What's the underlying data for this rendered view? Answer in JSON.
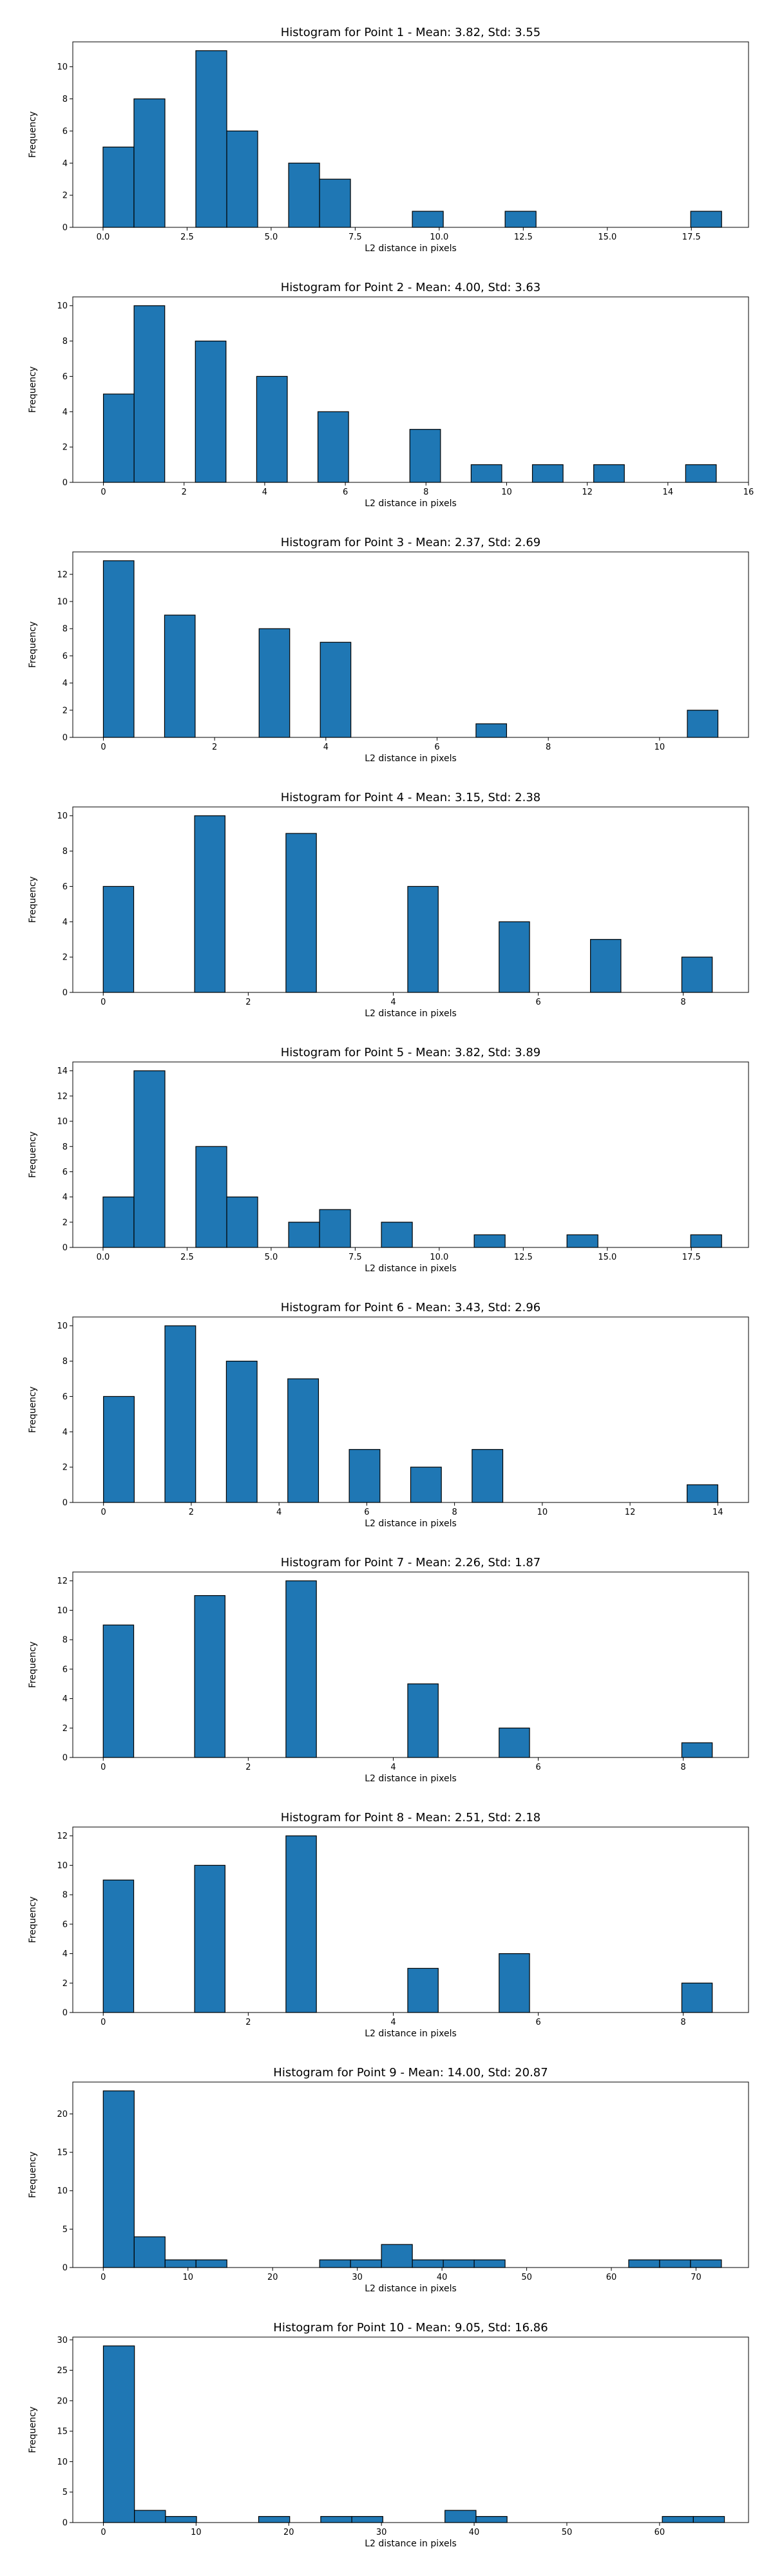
{
  "chart_data": [
    {
      "type": "bar",
      "title": "Histogram for Point 1 - Mean: 3.82, Std: 3.55",
      "xlabel": "L2 distance in pixels",
      "ylabel": "Frequency",
      "xlim": [
        -0.9,
        19.2
      ],
      "ylim": [
        0,
        11.55
      ],
      "xticks": [
        0.0,
        2.5,
        5.0,
        7.5,
        10.0,
        12.5,
        15.0,
        17.5
      ],
      "xtick_labels": [
        "0.0",
        "2.5",
        "5.0",
        "7.5",
        "10.0",
        "12.5",
        "15.0",
        "17.5"
      ],
      "yticks": [
        0,
        2,
        4,
        6,
        8,
        10
      ],
      "bars": [
        {
          "x0": 0.0,
          "x1": 0.92,
          "value": 5
        },
        {
          "x0": 0.92,
          "x1": 1.84,
          "value": 8
        },
        {
          "x0": 2.76,
          "x1": 3.68,
          "value": 11
        },
        {
          "x0": 3.68,
          "x1": 4.6,
          "value": 6
        },
        {
          "x0": 5.52,
          "x1": 6.44,
          "value": 4
        },
        {
          "x0": 6.44,
          "x1": 7.36,
          "value": 3
        },
        {
          "x0": 9.2,
          "x1": 10.12,
          "value": 1
        },
        {
          "x0": 11.96,
          "x1": 12.88,
          "value": 1
        },
        {
          "x0": 17.48,
          "x1": 18.4,
          "value": 1
        }
      ]
    },
    {
      "type": "bar",
      "title": "Histogram for Point 2 - Mean: 4.00, Std: 3.63",
      "xlabel": "L2 distance in pixels",
      "ylabel": "Frequency",
      "xlim": [
        -0.76,
        16.0
      ],
      "ylim": [
        0,
        10.5
      ],
      "xticks": [
        0,
        2,
        4,
        6,
        8,
        10,
        12,
        14,
        16
      ],
      "xtick_labels": [
        "0",
        "2",
        "4",
        "6",
        "8",
        "10",
        "12",
        "14",
        "16"
      ],
      "yticks": [
        0,
        2,
        4,
        6,
        8,
        10
      ],
      "bars": [
        {
          "x0": 0.0,
          "x1": 0.76,
          "value": 5
        },
        {
          "x0": 0.76,
          "x1": 1.52,
          "value": 10
        },
        {
          "x0": 2.28,
          "x1": 3.04,
          "value": 8
        },
        {
          "x0": 3.8,
          "x1": 4.56,
          "value": 6
        },
        {
          "x0": 5.32,
          "x1": 6.08,
          "value": 4
        },
        {
          "x0": 7.6,
          "x1": 8.36,
          "value": 3
        },
        {
          "x0": 9.12,
          "x1": 9.88,
          "value": 1
        },
        {
          "x0": 10.64,
          "x1": 11.4,
          "value": 1
        },
        {
          "x0": 12.16,
          "x1": 12.92,
          "value": 1
        },
        {
          "x0": 14.44,
          "x1": 15.2,
          "value": 1
        }
      ]
    },
    {
      "type": "bar",
      "title": "Histogram for Point 3 - Mean: 2.37, Std: 2.69",
      "xlabel": "L2 distance in pixels",
      "ylabel": "Frequency",
      "xlim": [
        -0.55,
        11.6
      ],
      "ylim": [
        0,
        13.65
      ],
      "xticks": [
        0,
        2,
        4,
        6,
        8,
        10
      ],
      "xtick_labels": [
        "0",
        "2",
        "4",
        "6",
        "8",
        "10"
      ],
      "yticks": [
        0,
        2,
        4,
        6,
        8,
        10,
        12
      ],
      "bars": [
        {
          "x0": 0.0,
          "x1": 0.55,
          "value": 13
        },
        {
          "x0": 1.1,
          "x1": 1.65,
          "value": 9
        },
        {
          "x0": 2.8,
          "x1": 3.35,
          "value": 8
        },
        {
          "x0": 3.9,
          "x1": 4.45,
          "value": 7
        },
        {
          "x0": 6.7,
          "x1": 7.25,
          "value": 1
        },
        {
          "x0": 10.5,
          "x1": 11.05,
          "value": 2
        }
      ]
    },
    {
      "type": "bar",
      "title": "Histogram for Point 4 - Mean: 3.15, Std: 2.38",
      "xlabel": "L2 distance in pixels",
      "ylabel": "Frequency",
      "xlim": [
        -0.42,
        8.9
      ],
      "ylim": [
        0,
        10.5
      ],
      "xticks": [
        0,
        2,
        4,
        6,
        8
      ],
      "xtick_labels": [
        "0",
        "2",
        "4",
        "6",
        "8"
      ],
      "yticks": [
        0,
        2,
        4,
        6,
        8,
        10
      ],
      "bars": [
        {
          "x0": 0.0,
          "x1": 0.42,
          "value": 6
        },
        {
          "x0": 1.26,
          "x1": 1.68,
          "value": 10
        },
        {
          "x0": 2.52,
          "x1": 2.94,
          "value": 9
        },
        {
          "x0": 4.2,
          "x1": 4.62,
          "value": 6
        },
        {
          "x0": 5.46,
          "x1": 5.88,
          "value": 4
        },
        {
          "x0": 6.72,
          "x1": 7.14,
          "value": 3
        },
        {
          "x0": 7.98,
          "x1": 8.4,
          "value": 2
        }
      ]
    },
    {
      "type": "bar",
      "title": "Histogram for Point 5 - Mean: 3.82, Std: 3.89",
      "xlabel": "L2 distance in pixels",
      "ylabel": "Frequency",
      "xlim": [
        -0.9,
        19.2
      ],
      "ylim": [
        0,
        14.7
      ],
      "xticks": [
        0.0,
        2.5,
        5.0,
        7.5,
        10.0,
        12.5,
        15.0,
        17.5
      ],
      "xtick_labels": [
        "0.0",
        "2.5",
        "5.0",
        "7.5",
        "10.0",
        "12.5",
        "15.0",
        "17.5"
      ],
      "yticks": [
        0,
        2,
        4,
        6,
        8,
        10,
        12,
        14
      ],
      "bars": [
        {
          "x0": 0.0,
          "x1": 0.92,
          "value": 4
        },
        {
          "x0": 0.92,
          "x1": 1.84,
          "value": 14
        },
        {
          "x0": 2.76,
          "x1": 3.68,
          "value": 8
        },
        {
          "x0": 3.68,
          "x1": 4.6,
          "value": 4
        },
        {
          "x0": 5.52,
          "x1": 6.44,
          "value": 2
        },
        {
          "x0": 6.44,
          "x1": 7.36,
          "value": 3
        },
        {
          "x0": 8.28,
          "x1": 9.2,
          "value": 2
        },
        {
          "x0": 11.04,
          "x1": 11.96,
          "value": 1
        },
        {
          "x0": 13.8,
          "x1": 14.72,
          "value": 1
        },
        {
          "x0": 17.48,
          "x1": 18.4,
          "value": 1
        }
      ]
    },
    {
      "type": "bar",
      "title": "Histogram for Point 6 - Mean: 3.43, Std: 2.96",
      "xlabel": "L2 distance in pixels",
      "ylabel": "Frequency",
      "xlim": [
        -0.7,
        14.7
      ],
      "ylim": [
        0,
        10.5
      ],
      "xticks": [
        0,
        2,
        4,
        6,
        8,
        10,
        12,
        14
      ],
      "xtick_labels": [
        "0",
        "2",
        "4",
        "6",
        "8",
        "10",
        "12",
        "14"
      ],
      "yticks": [
        0,
        2,
        4,
        6,
        8,
        10
      ],
      "bars": [
        {
          "x0": 0.0,
          "x1": 0.7,
          "value": 6
        },
        {
          "x0": 1.4,
          "x1": 2.1,
          "value": 10
        },
        {
          "x0": 2.8,
          "x1": 3.5,
          "value": 8
        },
        {
          "x0": 4.2,
          "x1": 4.9,
          "value": 7
        },
        {
          "x0": 5.6,
          "x1": 6.3,
          "value": 3
        },
        {
          "x0": 7.0,
          "x1": 7.7,
          "value": 2
        },
        {
          "x0": 8.4,
          "x1": 9.1,
          "value": 3
        },
        {
          "x0": 13.3,
          "x1": 14.0,
          "value": 1
        }
      ]
    },
    {
      "type": "bar",
      "title": "Histogram for Point 7 - Mean: 2.26, Std: 1.87",
      "xlabel": "L2 distance in pixels",
      "ylabel": "Frequency",
      "xlim": [
        -0.42,
        8.9
      ],
      "ylim": [
        0,
        12.6
      ],
      "xticks": [
        0,
        2,
        4,
        6,
        8
      ],
      "xtick_labels": [
        "0",
        "2",
        "4",
        "6",
        "8"
      ],
      "yticks": [
        0,
        2,
        4,
        6,
        8,
        10,
        12
      ],
      "bars": [
        {
          "x0": 0.0,
          "x1": 0.42,
          "value": 9
        },
        {
          "x0": 1.26,
          "x1": 1.68,
          "value": 11
        },
        {
          "x0": 2.52,
          "x1": 2.94,
          "value": 12
        },
        {
          "x0": 4.2,
          "x1": 4.62,
          "value": 5
        },
        {
          "x0": 5.46,
          "x1": 5.88,
          "value": 2
        },
        {
          "x0": 7.98,
          "x1": 8.4,
          "value": 1
        }
      ]
    },
    {
      "type": "bar",
      "title": "Histogram for Point 8 - Mean: 2.51, Std: 2.18",
      "xlabel": "L2 distance in pixels",
      "ylabel": "Frequency",
      "xlim": [
        -0.42,
        8.9
      ],
      "ylim": [
        0,
        12.6
      ],
      "xticks": [
        0,
        2,
        4,
        6,
        8
      ],
      "xtick_labels": [
        "0",
        "2",
        "4",
        "6",
        "8"
      ],
      "yticks": [
        0,
        2,
        4,
        6,
        8,
        10,
        12
      ],
      "bars": [
        {
          "x0": 0.0,
          "x1": 0.42,
          "value": 9
        },
        {
          "x0": 1.26,
          "x1": 1.68,
          "value": 10
        },
        {
          "x0": 2.52,
          "x1": 2.94,
          "value": 12
        },
        {
          "x0": 4.2,
          "x1": 4.62,
          "value": 3
        },
        {
          "x0": 5.46,
          "x1": 5.88,
          "value": 4
        },
        {
          "x0": 7.98,
          "x1": 8.4,
          "value": 2
        }
      ]
    },
    {
      "type": "bar",
      "title": "Histogram for Point 9 - Mean: 14.00, Std: 20.87",
      "xlabel": "L2 distance in pixels",
      "ylabel": "Frequency",
      "xlim": [
        -3.6,
        76.2
      ],
      "ylim": [
        0,
        24.15
      ],
      "xticks": [
        0,
        10,
        20,
        30,
        40,
        50,
        60,
        70
      ],
      "xtick_labels": [
        "0",
        "10",
        "20",
        "30",
        "40",
        "50",
        "60",
        "70"
      ],
      "yticks": [
        0,
        5,
        10,
        15,
        20
      ],
      "bars": [
        {
          "x0": 0.0,
          "x1": 3.65,
          "value": 23
        },
        {
          "x0": 3.65,
          "x1": 7.3,
          "value": 4
        },
        {
          "x0": 7.3,
          "x1": 10.95,
          "value": 1
        },
        {
          "x0": 10.95,
          "x1": 14.6,
          "value": 1
        },
        {
          "x0": 25.55,
          "x1": 29.2,
          "value": 1
        },
        {
          "x0": 29.2,
          "x1": 32.85,
          "value": 1
        },
        {
          "x0": 32.85,
          "x1": 36.5,
          "value": 3
        },
        {
          "x0": 36.5,
          "x1": 40.15,
          "value": 1
        },
        {
          "x0": 40.15,
          "x1": 43.8,
          "value": 1
        },
        {
          "x0": 43.8,
          "x1": 47.45,
          "value": 1
        },
        {
          "x0": 62.05,
          "x1": 65.7,
          "value": 1
        },
        {
          "x0": 65.7,
          "x1": 69.35,
          "value": 1
        },
        {
          "x0": 69.35,
          "x1": 73.0,
          "value": 1
        }
      ]
    },
    {
      "type": "bar",
      "title": "Histogram for Point 10 - Mean: 9.05, Std: 16.86",
      "xlabel": "L2 distance in pixels",
      "ylabel": "Frequency",
      "xlim": [
        -3.3,
        69.6
      ],
      "ylim": [
        0,
        30.45
      ],
      "xticks": [
        0,
        10,
        20,
        30,
        40,
        50,
        60
      ],
      "xtick_labels": [
        "0",
        "10",
        "20",
        "30",
        "40",
        "50",
        "60"
      ],
      "yticks": [
        0,
        5,
        10,
        15,
        20,
        25,
        30
      ],
      "bars": [
        {
          "x0": 0.0,
          "x1": 3.35,
          "value": 29
        },
        {
          "x0": 3.35,
          "x1": 6.7,
          "value": 2
        },
        {
          "x0": 6.7,
          "x1": 10.05,
          "value": 1
        },
        {
          "x0": 16.75,
          "x1": 20.1,
          "value": 1
        },
        {
          "x0": 23.45,
          "x1": 26.8,
          "value": 1
        },
        {
          "x0": 26.8,
          "x1": 30.15,
          "value": 1
        },
        {
          "x0": 36.85,
          "x1": 40.2,
          "value": 2
        },
        {
          "x0": 40.2,
          "x1": 43.55,
          "value": 1
        },
        {
          "x0": 60.3,
          "x1": 63.65,
          "value": 1
        },
        {
          "x0": 63.65,
          "x1": 67.0,
          "value": 1
        }
      ]
    }
  ]
}
